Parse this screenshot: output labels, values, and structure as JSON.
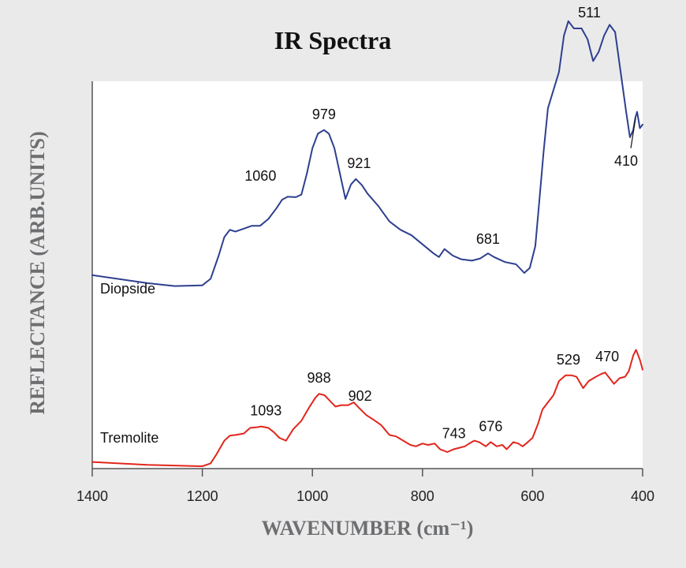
{
  "chart_data": {
    "type": "line",
    "title": "IR Spectra",
    "xlabel": "WAVENUMBER (cm⁻¹)",
    "ylabel": "REFLECTANCE (ARB.UNITS)",
    "xlim": [
      1400,
      400
    ],
    "x_reversed": true,
    "y_units": "arbitrary",
    "xticks": [
      1400,
      1200,
      1000,
      800,
      600,
      400
    ],
    "grid": false,
    "legend": "inline labels",
    "series": [
      {
        "name": "Diopside",
        "color": "#2e3f8f",
        "points": [
          [
            1400,
            12.0
          ],
          [
            1300,
            9.8
          ],
          [
            1250,
            9.0
          ],
          [
            1200,
            9.2
          ],
          [
            1185,
            11.0
          ],
          [
            1170,
            17.5
          ],
          [
            1160,
            22.5
          ],
          [
            1150,
            24.5
          ],
          [
            1140,
            24.0
          ],
          [
            1125,
            24.8
          ],
          [
            1110,
            25.6
          ],
          [
            1095,
            25.6
          ],
          [
            1080,
            27.5
          ],
          [
            1065,
            30.5
          ],
          [
            1055,
            32.8
          ],
          [
            1045,
            33.6
          ],
          [
            1030,
            33.5
          ],
          [
            1020,
            34.2
          ],
          [
            1010,
            40.0
          ],
          [
            1000,
            47.0
          ],
          [
            990,
            51.0
          ],
          [
            979,
            52.0
          ],
          [
            970,
            51.0
          ],
          [
            960,
            47.0
          ],
          [
            950,
            40.0
          ],
          [
            940,
            33.0
          ],
          [
            930,
            37.0
          ],
          [
            921,
            38.5
          ],
          [
            910,
            36.8
          ],
          [
            900,
            34.5
          ],
          [
            880,
            31.0
          ],
          [
            860,
            26.8
          ],
          [
            840,
            24.5
          ],
          [
            820,
            23.0
          ],
          [
            800,
            20.5
          ],
          [
            780,
            18.0
          ],
          [
            770,
            17.0
          ],
          [
            760,
            19.2
          ],
          [
            745,
            17.4
          ],
          [
            730,
            16.4
          ],
          [
            710,
            16.0
          ],
          [
            695,
            16.6
          ],
          [
            681,
            18.0
          ],
          [
            670,
            17.0
          ],
          [
            650,
            15.6
          ],
          [
            630,
            15.0
          ],
          [
            615,
            12.6
          ],
          [
            605,
            14.0
          ],
          [
            595,
            20.0
          ],
          [
            588,
            32.0
          ],
          [
            580,
            46.0
          ],
          [
            572,
            58.0
          ],
          [
            562,
            63.0
          ],
          [
            552,
            68.0
          ],
          [
            543,
            78.0
          ],
          [
            535,
            82.0
          ],
          [
            525,
            80.0
          ],
          [
            511,
            80.0
          ],
          [
            500,
            77.0
          ],
          [
            490,
            71.0
          ],
          [
            480,
            73.5
          ],
          [
            470,
            78.0
          ],
          [
            460,
            81.0
          ],
          [
            450,
            79.0
          ],
          [
            440,
            68.0
          ],
          [
            430,
            57.0
          ],
          [
            423,
            50.0
          ],
          [
            417,
            52.0
          ],
          [
            413,
            55.5
          ],
          [
            410,
            57.0
          ],
          [
            405,
            52.5
          ],
          [
            400,
            53.5
          ]
        ],
        "peak_labels": [
          {
            "text": "1060",
            "x": 1060,
            "y": 32.8
          },
          {
            "text": "979",
            "x": 979,
            "y": 52.0
          },
          {
            "text": "921",
            "x": 921,
            "y": 38.5
          },
          {
            "text": "681",
            "x": 681,
            "y": 18.0
          },
          {
            "text": "511",
            "x": 511,
            "y": 80.0
          },
          {
            "text": "410",
            "x": 410,
            "y": 57.0
          }
        ]
      },
      {
        "name": "Tremolite",
        "color": "#e1261c",
        "points": [
          [
            1400,
            3.0
          ],
          [
            1300,
            1.0
          ],
          [
            1200,
            0.0
          ],
          [
            1185,
            2.0
          ],
          [
            1175,
            8.0
          ],
          [
            1160,
            18.0
          ],
          [
            1150,
            21.5
          ],
          [
            1140,
            22.0
          ],
          [
            1125,
            23.0
          ],
          [
            1113,
            27.0
          ],
          [
            1100,
            27.5
          ],
          [
            1093,
            28.0
          ],
          [
            1080,
            27.0
          ],
          [
            1070,
            24.0
          ],
          [
            1060,
            20.0
          ],
          [
            1048,
            18.0
          ],
          [
            1035,
            26.0
          ],
          [
            1020,
            32.0
          ],
          [
            1005,
            42.0
          ],
          [
            995,
            48.0
          ],
          [
            988,
            51.0
          ],
          [
            978,
            50.0
          ],
          [
            968,
            46.0
          ],
          [
            958,
            42.0
          ],
          [
            948,
            43.0
          ],
          [
            935,
            43.0
          ],
          [
            925,
            45.0
          ],
          [
            915,
            41.0
          ],
          [
            902,
            36.0
          ],
          [
            890,
            33.0
          ],
          [
            875,
            29.0
          ],
          [
            860,
            22.0
          ],
          [
            848,
            21.0
          ],
          [
            835,
            18.0
          ],
          [
            822,
            15.0
          ],
          [
            812,
            14.0
          ],
          [
            800,
            16.0
          ],
          [
            790,
            15.0
          ],
          [
            778,
            16.0
          ],
          [
            768,
            12.0
          ],
          [
            755,
            10.0
          ],
          [
            743,
            12.0
          ],
          [
            733,
            13.0
          ],
          [
            723,
            14.0
          ],
          [
            715,
            16.0
          ],
          [
            706,
            18.0
          ],
          [
            697,
            17.0
          ],
          [
            685,
            14.0
          ],
          [
            676,
            17.0
          ],
          [
            665,
            14.0
          ],
          [
            655,
            15.0
          ],
          [
            647,
            12.0
          ],
          [
            635,
            17.0
          ],
          [
            626,
            16.0
          ],
          [
            618,
            14.0
          ],
          [
            610,
            16.5
          ],
          [
            600,
            20.0
          ],
          [
            590,
            30.0
          ],
          [
            582,
            40.0
          ],
          [
            572,
            45.0
          ],
          [
            562,
            50.0
          ],
          [
            552,
            60.0
          ],
          [
            540,
            64.0
          ],
          [
            529,
            64.0
          ],
          [
            520,
            63.0
          ],
          [
            508,
            55.0
          ],
          [
            498,
            60.0
          ],
          [
            485,
            63.0
          ],
          [
            475,
            65.0
          ],
          [
            468,
            66.0
          ],
          [
            460,
            62.0
          ],
          [
            452,
            58.0
          ],
          [
            442,
            62.0
          ],
          [
            432,
            63.0
          ],
          [
            425,
            67.0
          ],
          [
            417,
            78.0
          ],
          [
            412,
            82.0
          ],
          [
            405,
            75.0
          ],
          [
            400,
            68.0
          ]
        ],
        "peak_labels": [
          {
            "text": "1093",
            "x": 1093,
            "y": 28.0
          },
          {
            "text": "988",
            "x": 988,
            "y": 51.0
          },
          {
            "text": "902",
            "x": 902,
            "y": 36.0
          },
          {
            "text": "743",
            "x": 743,
            "y": 12.0
          },
          {
            "text": "676",
            "x": 676,
            "y": 17.0
          },
          {
            "text": "529",
            "x": 529,
            "y": 64.0
          },
          {
            "text": "470",
            "x": 470,
            "y": 66.0
          }
        ]
      }
    ]
  }
}
